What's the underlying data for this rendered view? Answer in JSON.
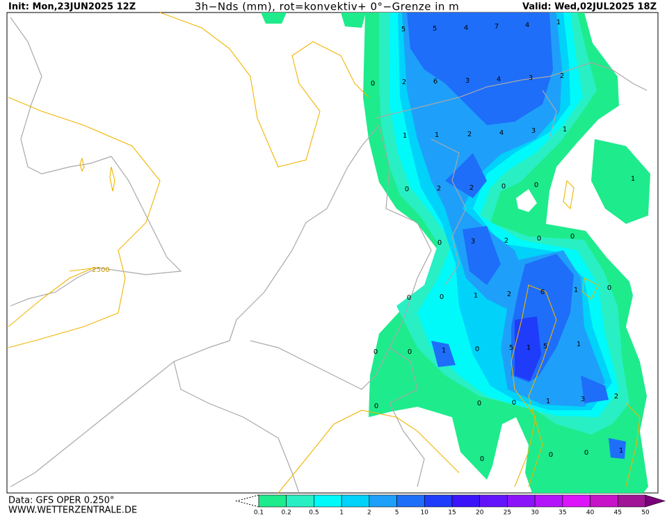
{
  "header": {
    "init": "Init: Mon,23JUN2025 12Z",
    "title": "3h−Nds (mm), rot=konvektiv+ 0°−Grenze in m",
    "valid": "Valid: Wed,02JUL2025 18Z"
  },
  "footer": {
    "data": "Data: GFS OPER 0.250°",
    "site": "WWW.WETTERZENTRALE.DE"
  },
  "contour_label": "2500",
  "map_labels": [
    5,
    5,
    4,
    7,
    4,
    1,
    0,
    2,
    6,
    3,
    4,
    3,
    2,
    1,
    1,
    2,
    4,
    3,
    1,
    1,
    0,
    2,
    2,
    0,
    0,
    0,
    3,
    2,
    0,
    0,
    6,
    1,
    0,
    0,
    0,
    1,
    2,
    5,
    1,
    5,
    1,
    0,
    0,
    1,
    0,
    3,
    2,
    0,
    0,
    1,
    0,
    0,
    0,
    1,
    0
  ],
  "colorbar": {
    "labels": [
      0.1,
      0.2,
      0.5,
      1,
      2,
      5,
      10,
      15,
      20,
      25,
      30,
      35,
      40,
      45,
      50
    ],
    "colors": [
      "#1eeb8c",
      "#28f0c4",
      "#00fafa",
      "#00d2fa",
      "#1ea0fa",
      "#1e6efa",
      "#1e3cfa",
      "#3c14fa",
      "#6414fa",
      "#8c14fa",
      "#b414fa",
      "#dc14fa",
      "#c814c8",
      "#a01496"
    ],
    "over_color": "#780078"
  }
}
